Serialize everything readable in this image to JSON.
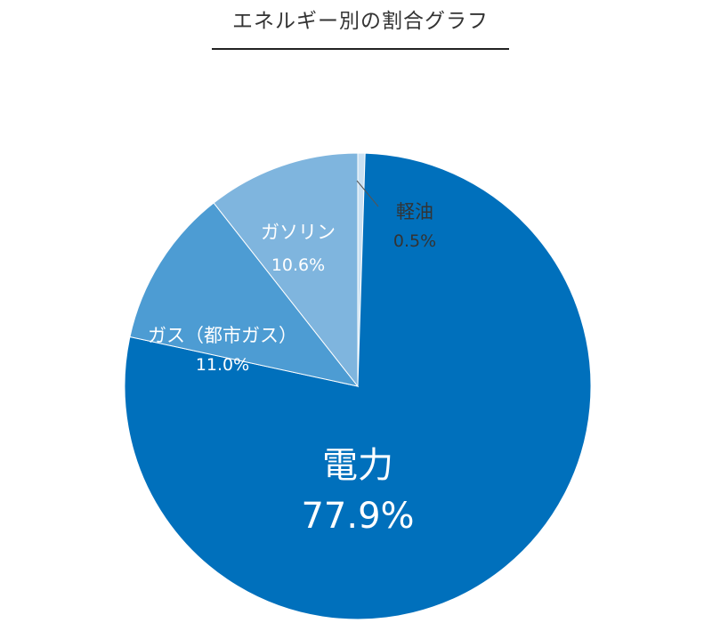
{
  "title": "エネルギー別の割合グラフ",
  "colors": {
    "electricity": "#0070BC",
    "gas": "#4D9CD3",
    "gasoline": "#7FB5DE",
    "light_oil": "#C9E0F2",
    "separator": "#FFFFFF",
    "label_light": "#FFFFFF",
    "label_dark": "#333333"
  },
  "chart_data": {
    "type": "pie",
    "title": "エネルギー別の割合グラフ",
    "start": "12 o'clock",
    "direction": "clockwise",
    "slices": [
      {
        "label": "軽油",
        "value": 0.5,
        "value_label": "0.5%",
        "color": "#C9E0F2"
      },
      {
        "label": "電力",
        "value": 77.9,
        "value_label": "77.9%",
        "color": "#0070BC"
      },
      {
        "label": "ガス（都市ガス）",
        "value": 11.0,
        "value_label": "11.0%",
        "color": "#4D9CD3"
      },
      {
        "label": "ガソリン",
        "value": 10.6,
        "value_label": "10.6%",
        "color": "#7FB5DE"
      }
    ]
  }
}
